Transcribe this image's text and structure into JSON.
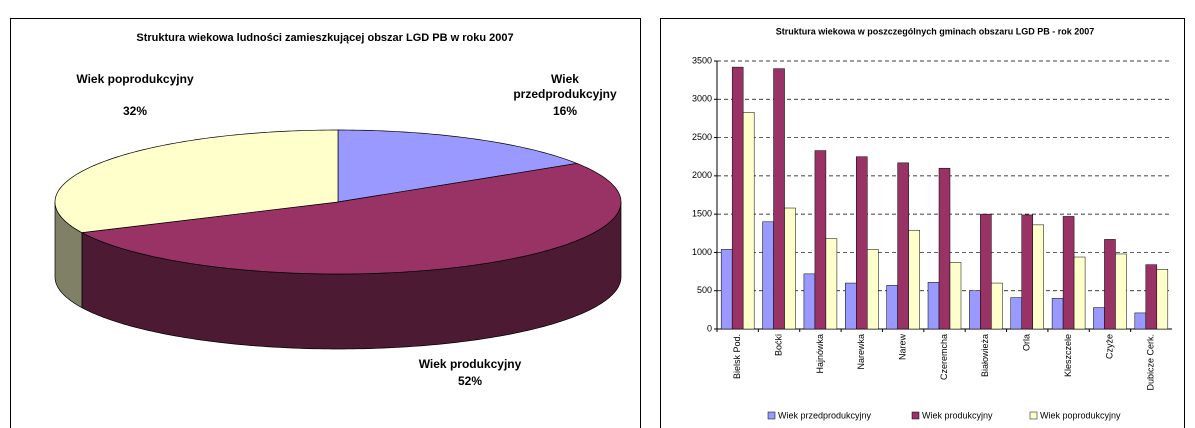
{
  "chart_data": [
    {
      "type": "pie",
      "title": "Struktura wiekowa ludności zamieszkującej obszar LGD PB w roku 2007",
      "categories": [
        "Wiek przedprodukcyjny",
        "Wiek produkcyjny",
        "Wiek poprodukcyjny"
      ],
      "values": [
        16,
        52,
        32
      ],
      "value_labels": [
        "16%",
        "52%",
        "32%"
      ],
      "colors": [
        "#9999ff",
        "#993366",
        "#ffffcc"
      ]
    },
    {
      "type": "bar",
      "title": "Struktura wiekowa w poszczególnych gminach obszaru LGD PB - rok 2007",
      "categories": [
        "Bielsk Pod.",
        "Boćki",
        "Hajnówka",
        "Narewka",
        "Narew",
        "Czeremcha",
        "Białowieża",
        "Orla",
        "Kleszczele",
        "Czyże",
        "Dubicze Cerk."
      ],
      "series": [
        {
          "name": "Wiek przedprodukcyjny",
          "color": "#9999ff",
          "values": [
            1040,
            1400,
            720,
            600,
            570,
            610,
            500,
            410,
            400,
            280,
            210
          ]
        },
        {
          "name": "Wiek produkcyjny",
          "color": "#993366",
          "values": [
            3420,
            3400,
            2330,
            2250,
            2170,
            2100,
            1500,
            1490,
            1470,
            1170,
            840
          ]
        },
        {
          "name": "Wiek poprodukcyjny",
          "color": "#ffffcc",
          "values": [
            2830,
            1580,
            1180,
            1040,
            1290,
            870,
            600,
            1360,
            940,
            980,
            780
          ]
        }
      ],
      "ylim": [
        0,
        3500
      ],
      "yticks": [
        0,
        500,
        1000,
        1500,
        2000,
        2500,
        3000,
        3500
      ],
      "grid": true,
      "legend": "bottom"
    }
  ]
}
